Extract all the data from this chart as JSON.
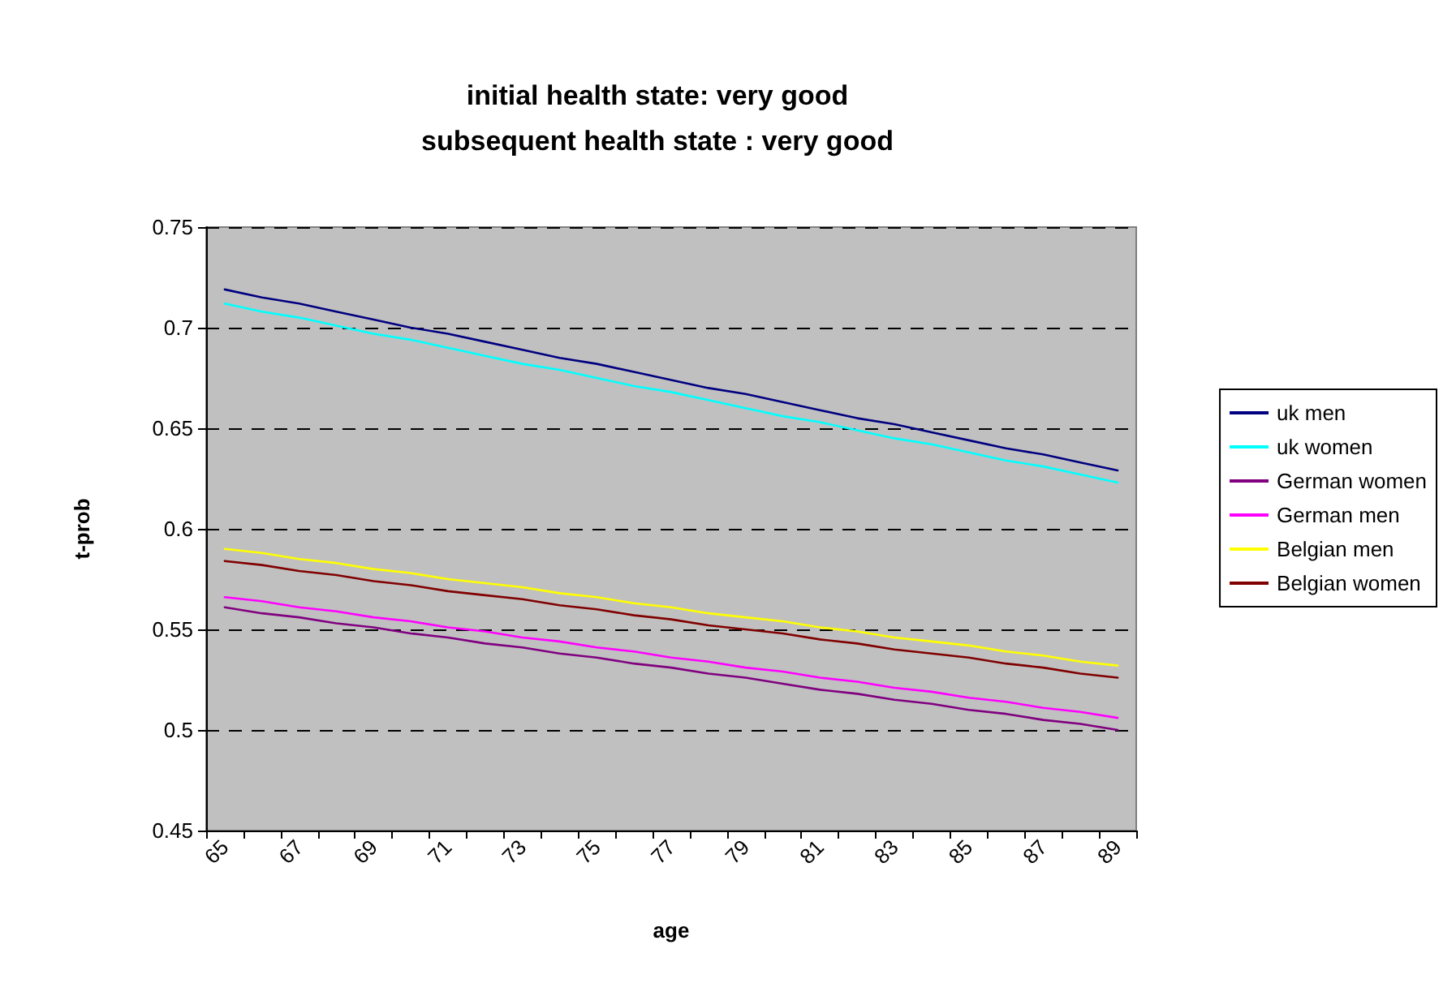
{
  "chart_data": {
    "type": "line",
    "title": "initial health state: very good\nsubsequent health state : very good",
    "xlabel": "age",
    "ylabel": "t-prob",
    "categories": [
      "65",
      null,
      "67",
      null,
      "69",
      null,
      "71",
      null,
      "73",
      null,
      "75",
      null,
      "77",
      null,
      "79",
      null,
      "81",
      null,
      "83",
      null,
      "85",
      null,
      "87",
      null,
      "89"
    ],
    "series": [
      {
        "name": "uk men",
        "color": "#000080",
        "values": [
          0.719,
          0.715,
          0.712,
          0.708,
          0.704,
          0.7,
          0.697,
          0.693,
          0.689,
          0.685,
          0.682,
          0.678,
          0.674,
          0.67,
          0.667,
          0.663,
          0.659,
          0.655,
          0.652,
          0.648,
          0.644,
          0.64,
          0.637,
          0.633,
          0.629
        ]
      },
      {
        "name": "uk women",
        "color": "#00ffff",
        "values": [
          0.712,
          0.708,
          0.705,
          0.701,
          0.697,
          0.694,
          0.69,
          0.686,
          0.682,
          0.679,
          0.675,
          0.671,
          0.668,
          0.664,
          0.66,
          0.656,
          0.653,
          0.649,
          0.645,
          0.642,
          0.638,
          0.634,
          0.631,
          0.627,
          0.623
        ]
      },
      {
        "name": "German women",
        "color": "#800080",
        "values": [
          0.561,
          0.558,
          0.556,
          0.553,
          0.551,
          0.548,
          0.546,
          0.543,
          0.541,
          0.538,
          0.536,
          0.533,
          0.531,
          0.528,
          0.526,
          0.523,
          0.52,
          0.518,
          0.515,
          0.513,
          0.51,
          0.508,
          0.505,
          0.503,
          0.5
        ]
      },
      {
        "name": "German men",
        "color": "#ff00ff",
        "values": [
          0.566,
          0.564,
          0.561,
          0.559,
          0.556,
          0.554,
          0.551,
          0.549,
          0.546,
          0.544,
          0.541,
          0.539,
          0.536,
          0.534,
          0.531,
          0.529,
          0.526,
          0.524,
          0.521,
          0.519,
          0.516,
          0.514,
          0.511,
          0.509,
          0.506
        ]
      },
      {
        "name": "Belgian men",
        "color": "#ffff00",
        "values": [
          0.59,
          0.588,
          0.585,
          0.583,
          0.58,
          0.578,
          0.575,
          0.573,
          0.571,
          0.568,
          0.566,
          0.563,
          0.561,
          0.558,
          0.556,
          0.554,
          0.551,
          0.549,
          0.546,
          0.544,
          0.542,
          0.539,
          0.537,
          0.534,
          0.532
        ]
      },
      {
        "name": "Belgian women",
        "color": "#800000",
        "values": [
          0.584,
          0.582,
          0.579,
          0.577,
          0.574,
          0.572,
          0.569,
          0.567,
          0.565,
          0.562,
          0.56,
          0.557,
          0.555,
          0.552,
          0.55,
          0.548,
          0.545,
          0.543,
          0.54,
          0.538,
          0.536,
          0.533,
          0.531,
          0.528,
          0.526
        ]
      }
    ],
    "ylim": [
      0.45,
      0.75
    ],
    "yticks": [
      0.45,
      0.5,
      0.55,
      0.6,
      0.65,
      0.7,
      0.75
    ],
    "grid": "y",
    "legend": "right",
    "marker": "none",
    "line_style": "solid"
  }
}
